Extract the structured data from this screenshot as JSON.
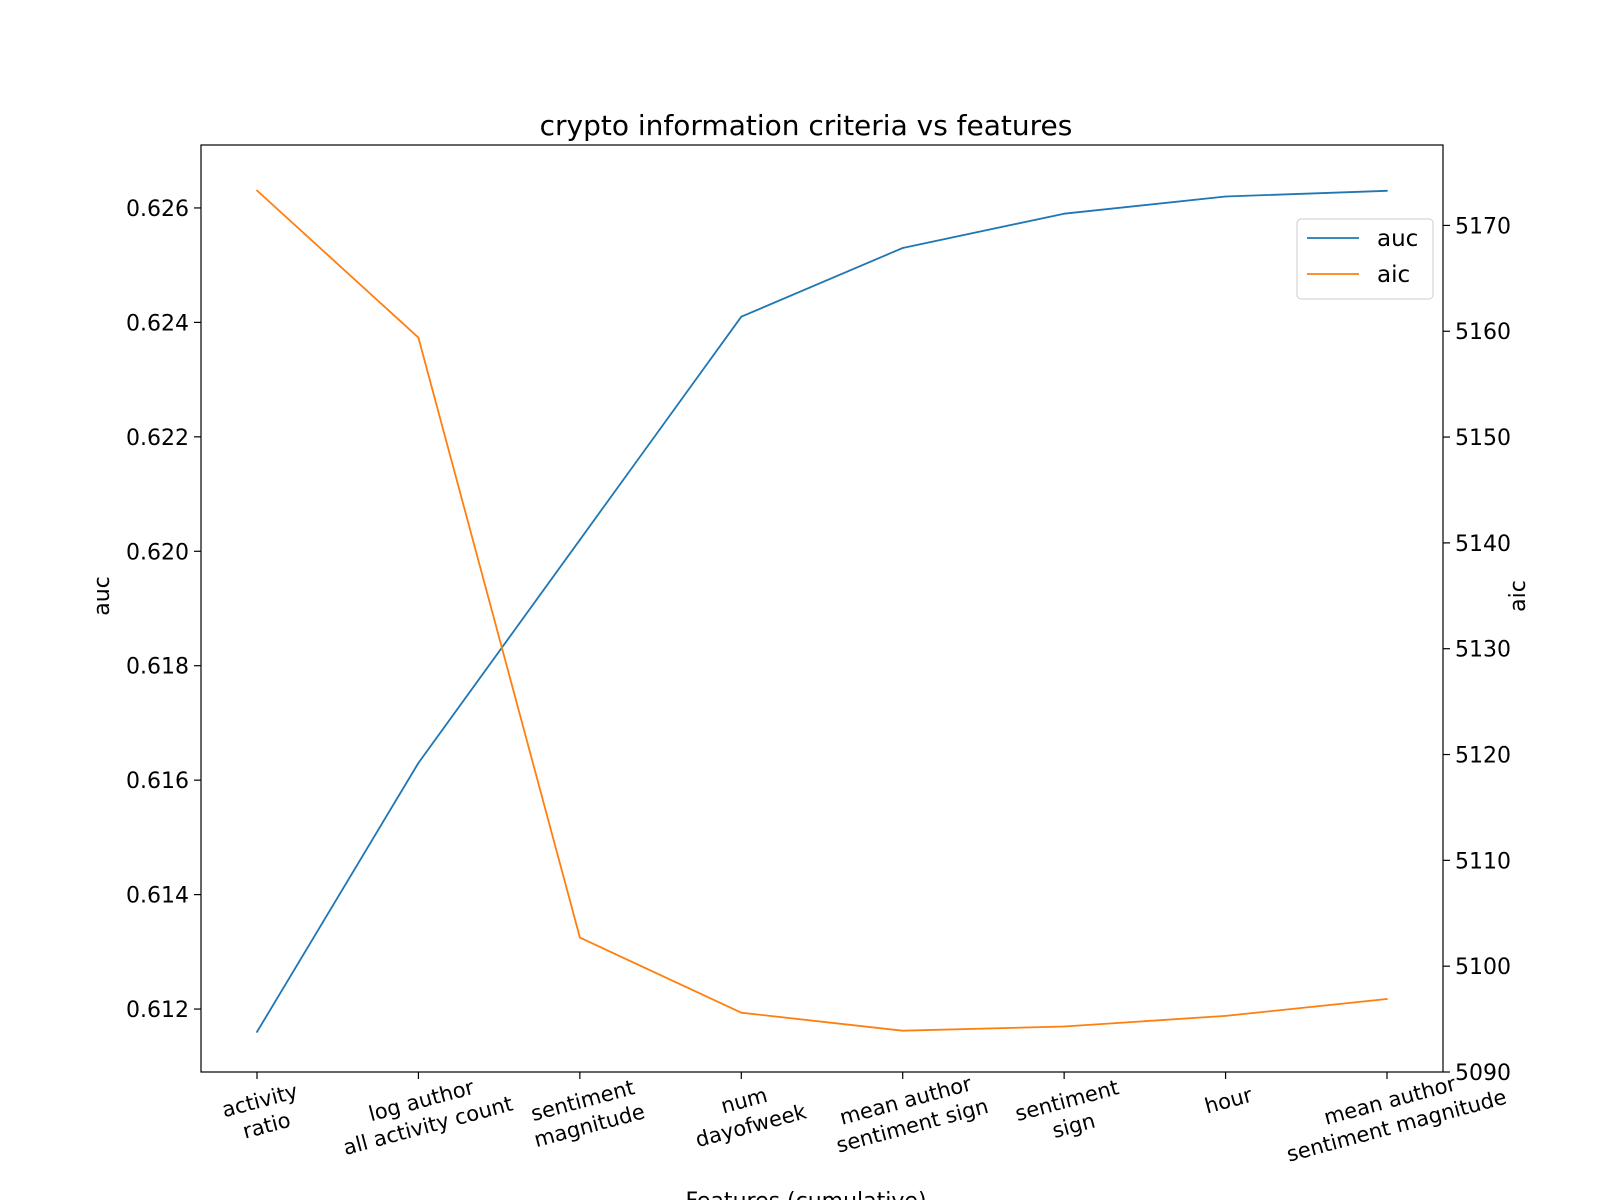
{
  "chart_data": {
    "type": "line",
    "title": "crypto information criteria vs features",
    "xlabel": "Features (cumulative)",
    "ylabel_left": "auc",
    "ylabel_right": "aic",
    "categories": [
      [
        "activity",
        "ratio"
      ],
      [
        "log author",
        "all activity count"
      ],
      [
        "sentiment",
        "magnitude"
      ],
      [
        "num",
        "dayofweek"
      ],
      [
        "mean author",
        "sentiment sign"
      ],
      [
        "sentiment",
        "sign"
      ],
      [
        "hour"
      ],
      [
        "mean author",
        "sentiment magnitude"
      ]
    ],
    "series": [
      {
        "name": "auc",
        "axis": "left",
        "color": "#1f77b4",
        "values": [
          0.6116,
          0.6163,
          0.6202,
          0.6241,
          0.6253,
          0.6259,
          0.6262,
          0.6263
        ]
      },
      {
        "name": "aic",
        "axis": "right",
        "color": "#ff7f0e",
        "values": [
          5173.3,
          5159.4,
          5102.7,
          5095.6,
          5093.9,
          5094.3,
          5095.3,
          5096.9
        ]
      }
    ],
    "ylim_left": [
      0.6109,
      0.6271
    ],
    "ylim_right": [
      5090,
      5177.6
    ],
    "yticks_left": [
      "0.612",
      "0.614",
      "0.616",
      "0.618",
      "0.620",
      "0.622",
      "0.624",
      "0.626"
    ],
    "yticks_right": [
      "5090",
      "5100",
      "5110",
      "5120",
      "5130",
      "5140",
      "5150",
      "5160",
      "5170"
    ],
    "legend_position": "upper-right",
    "grid": false
  }
}
